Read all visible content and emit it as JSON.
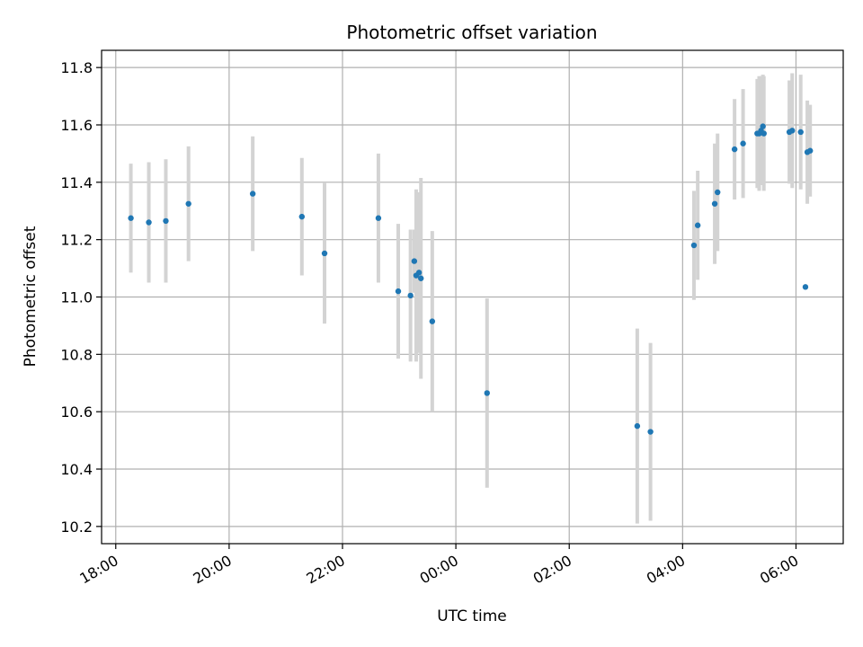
{
  "chart_data": {
    "type": "scatter",
    "title": "Photometric offset variation",
    "xlabel": "UTC time",
    "ylabel": "Photometric offset",
    "x_axis": {
      "kind": "time",
      "range": [
        "17:45",
        "06:50"
      ],
      "ticks": [
        "18:00",
        "20:00",
        "22:00",
        "00:00",
        "02:00",
        "04:00",
        "06:00"
      ]
    },
    "y_axis": {
      "range": [
        10.14,
        11.86
      ],
      "ticks": [
        "10.2",
        "10.4",
        "10.6",
        "10.8",
        "11.0",
        "11.2",
        "11.4",
        "11.6",
        "11.8"
      ]
    },
    "grid": true,
    "colors": {
      "point": "#1f77b4",
      "errorbar": "#d3d3d3",
      "grid": "#b0b0b0"
    },
    "points": [
      {
        "t": "18:16",
        "y": 11.275,
        "err": 0.19
      },
      {
        "t": "18:35",
        "y": 11.26,
        "err": 0.21
      },
      {
        "t": "18:53",
        "y": 11.265,
        "err": 0.215
      },
      {
        "t": "19:17",
        "y": 11.325,
        "err": 0.2
      },
      {
        "t": "20:25",
        "y": 11.36,
        "err": 0.2
      },
      {
        "t": "21:17",
        "y": 11.28,
        "err": 0.205
      },
      {
        "t": "21:41",
        "y": 11.152,
        "err": 0.245
      },
      {
        "t": "22:38",
        "y": 11.275,
        "err": 0.225
      },
      {
        "t": "22:59",
        "y": 11.02,
        "err": 0.235
      },
      {
        "t": "23:12",
        "y": 11.005,
        "err": 0.23
      },
      {
        "t": "23:16",
        "y": 11.125,
        "err": 0.11
      },
      {
        "t": "23:18",
        "y": 11.075,
        "err": 0.3
      },
      {
        "t": "23:21",
        "y": 11.085,
        "err": 0.28
      },
      {
        "t": "23:23",
        "y": 11.065,
        "err": 0.35
      },
      {
        "t": "23:35",
        "y": 10.915,
        "err": 0.315
      },
      {
        "t": "00:33",
        "y": 10.665,
        "err": 0.33
      },
      {
        "t": "03:12",
        "y": 10.55,
        "err": 0.34
      },
      {
        "t": "03:26",
        "y": 10.53,
        "err": 0.31
      },
      {
        "t": "04:12",
        "y": 11.18,
        "err": 0.19
      },
      {
        "t": "04:16",
        "y": 11.25,
        "err": 0.19
      },
      {
        "t": "04:34",
        "y": 11.325,
        "err": 0.21
      },
      {
        "t": "04:37",
        "y": 11.365,
        "err": 0.205
      },
      {
        "t": "04:55",
        "y": 11.515,
        "err": 0.175
      },
      {
        "t": "05:04",
        "y": 11.535,
        "err": 0.19
      },
      {
        "t": "05:19",
        "y": 11.57,
        "err": 0.19
      },
      {
        "t": "05:21",
        "y": 11.57,
        "err": 0.2
      },
      {
        "t": "05:23",
        "y": 11.58,
        "err": 0.19
      },
      {
        "t": "05:25",
        "y": 11.595,
        "err": 0.18
      },
      {
        "t": "05:26",
        "y": 11.57,
        "err": 0.2
      },
      {
        "t": "05:53",
        "y": 11.575,
        "err": 0.18
      },
      {
        "t": "05:56",
        "y": 11.58,
        "err": 0.2
      },
      {
        "t": "06:05",
        "y": 11.575,
        "err": 0.2
      },
      {
        "t": "06:10",
        "y": 11.035,
        "err": 0.0
      },
      {
        "t": "06:12",
        "y": 11.505,
        "err": 0.18
      },
      {
        "t": "06:15",
        "y": 11.51,
        "err": 0.16
      }
    ]
  }
}
